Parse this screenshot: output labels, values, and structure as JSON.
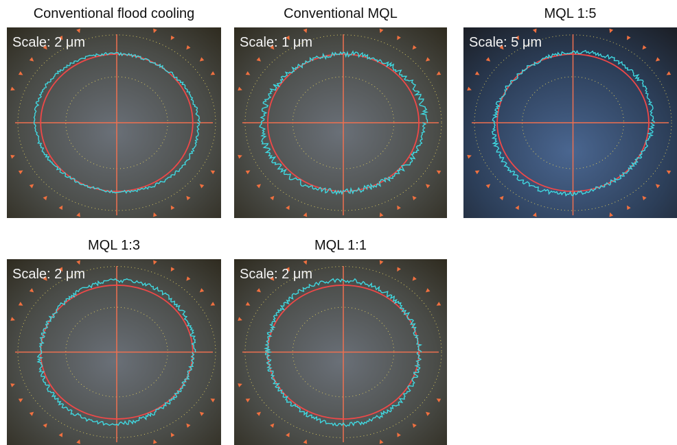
{
  "panels": [
    {
      "title": "Conventional flood cooling",
      "scale": "Scale: 2 μm"
    },
    {
      "title": "Conventional MQL",
      "scale": "Scale: 1 μm"
    },
    {
      "title": "MQL 1:5",
      "scale": "Scale: 5 μm"
    },
    {
      "title": "MQL 1:3",
      "scale": "Scale: 2 μm"
    },
    {
      "title": "MQL 1:1",
      "scale": "Scale: 2 μm"
    }
  ]
}
